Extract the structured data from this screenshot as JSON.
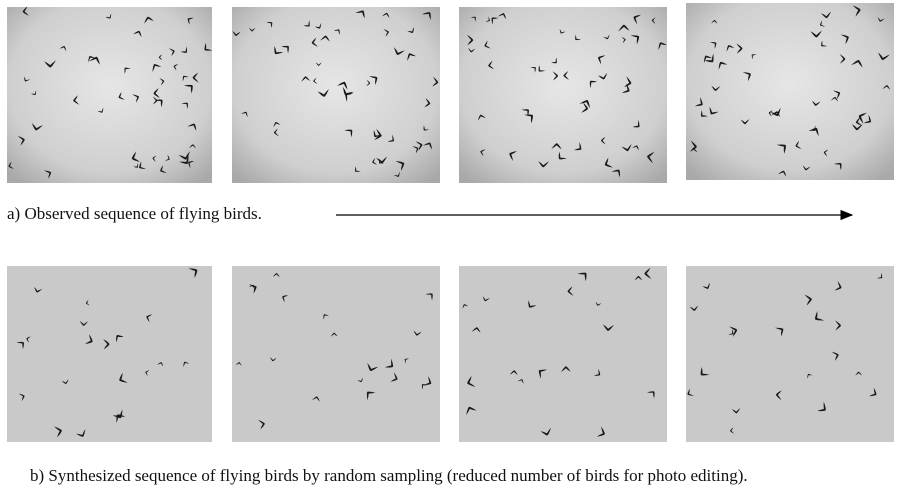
{
  "figure": {
    "captions": [
      "a) Observed sequence of flying birds.",
      "b) Synthesized sequence of flying birds by random sampling (reduced number of birds for photo editing)."
    ]
  }
}
